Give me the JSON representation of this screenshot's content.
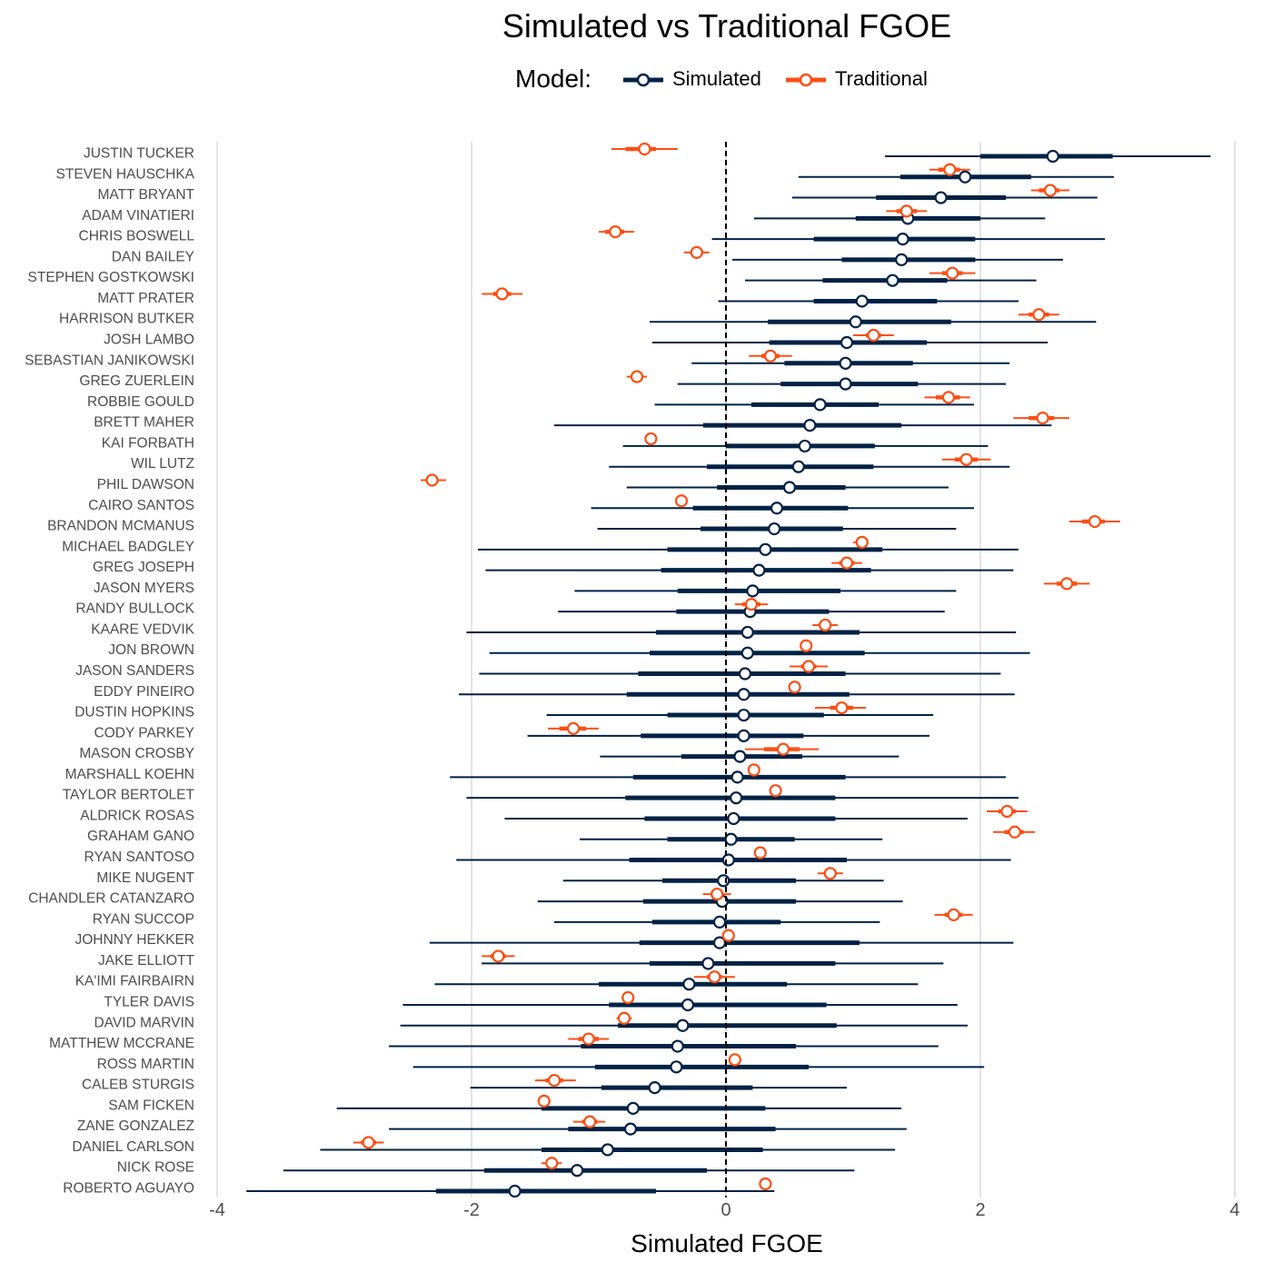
{
  "chart_data": {
    "type": "scatter",
    "title": "Simulated vs Traditional FGOE",
    "xlabel": "Simulated FGOE",
    "ylabel": "",
    "xlim": [
      -4,
      4
    ],
    "x_ticks": [
      -4,
      -2,
      0,
      2,
      4
    ],
    "x_tick_labels": [
      "-4",
      "-2",
      "0",
      "2",
      "4"
    ],
    "reference_line_x": 0,
    "grid": "vertical",
    "legend": {
      "title": "Model:",
      "position": "top"
    },
    "colors": {
      "Simulated": "#002244",
      "Traditional": "#FB4F14"
    },
    "categories": [
      "JUSTIN TUCKER",
      "STEVEN HAUSCHKA",
      "MATT BRYANT",
      "ADAM VINATIERI",
      "CHRIS BOSWELL",
      "DAN BAILEY",
      "STEPHEN GOSTKOWSKI",
      "MATT PRATER",
      "HARRISON BUTKER",
      "JOSH LAMBO",
      "SEBASTIAN JANIKOWSKI",
      "GREG ZUERLEIN",
      "ROBBIE GOULD",
      "BRETT MAHER",
      "KAI FORBATH",
      "WIL LUTZ",
      "PHIL DAWSON",
      "CAIRO SANTOS",
      "BRANDON MCMANUS",
      "MICHAEL BADGLEY",
      "GREG JOSEPH",
      "JASON MYERS",
      "RANDY BULLOCK",
      "KAARE VEDVIK",
      "JON BROWN",
      "JASON SANDERS",
      "EDDY PINEIRO",
      "DUSTIN HOPKINS",
      "CODY PARKEY",
      "MASON CROSBY",
      "MARSHALL KOEHN",
      "TAYLOR BERTOLET",
      "ALDRICK ROSAS",
      "GRAHAM GANO",
      "RYAN SANTOSO",
      "MIKE NUGENT",
      "CHANDLER CATANZARO",
      "RYAN SUCCOP",
      "JOHNNY HEKKER",
      "JAKE ELLIOTT",
      "KA'IMI FAIRBAIRN",
      "TYLER DAVIS",
      "DAVID MARVIN",
      "MATTHEW MCCRANE",
      "ROSS MARTIN",
      "CALEB STURGIS",
      "SAM FICKEN",
      "ZANE GONZALEZ",
      "DANIEL CARLSON",
      "NICK ROSE",
      "ROBERTO AGUAYO"
    ],
    "series": [
      {
        "name": "Simulated",
        "values": [
          2.57,
          1.88,
          1.69,
          1.43,
          1.39,
          1.38,
          1.31,
          1.07,
          1.02,
          0.95,
          0.94,
          0.94,
          0.74,
          0.66,
          0.62,
          0.57,
          0.5,
          0.4,
          0.38,
          0.31,
          0.26,
          0.21,
          0.19,
          0.17,
          0.17,
          0.15,
          0.14,
          0.14,
          0.14,
          0.11,
          0.09,
          0.08,
          0.06,
          0.04,
          0.02,
          -0.02,
          -0.03,
          -0.05,
          -0.05,
          -0.14,
          -0.29,
          -0.3,
          -0.34,
          -0.38,
          -0.39,
          -0.56,
          -0.73,
          -0.75,
          -0.93,
          -1.17,
          -1.66
        ],
        "inner_low": [
          2.0,
          1.37,
          1.18,
          1.02,
          0.69,
          0.91,
          0.76,
          0.69,
          0.33,
          0.34,
          0.46,
          0.43,
          0.2,
          -0.18,
          0.0,
          -0.15,
          -0.07,
          -0.26,
          -0.2,
          -0.46,
          -0.51,
          -0.38,
          -0.39,
          -0.55,
          -0.6,
          -0.69,
          -0.78,
          -0.46,
          -0.67,
          -0.35,
          -0.73,
          -0.79,
          -0.64,
          -0.46,
          -0.76,
          -0.5,
          -0.65,
          -0.58,
          -0.68,
          -0.6,
          -1.0,
          -0.92,
          -0.85,
          -1.14,
          -1.03,
          -0.98,
          -1.45,
          -1.24,
          -1.45,
          -1.9,
          -2.28
        ],
        "inner_high": [
          3.04,
          2.4,
          2.2,
          2.0,
          1.96,
          1.96,
          1.74,
          1.66,
          1.77,
          1.58,
          1.47,
          1.51,
          1.2,
          1.38,
          1.17,
          1.16,
          0.94,
          0.96,
          0.92,
          1.23,
          1.14,
          0.9,
          0.81,
          1.05,
          1.09,
          0.94,
          0.97,
          0.77,
          0.61,
          0.6,
          0.94,
          0.86,
          0.86,
          0.54,
          0.95,
          0.55,
          0.55,
          0.43,
          1.05,
          0.86,
          0.48,
          0.79,
          0.87,
          0.55,
          0.65,
          0.21,
          0.31,
          0.39,
          0.29,
          -0.15,
          -0.55
        ],
        "outer_low": [
          1.25,
          0.57,
          0.52,
          0.22,
          -0.11,
          0.05,
          0.15,
          -0.06,
          -0.6,
          -0.58,
          -0.27,
          -0.38,
          -0.56,
          -1.35,
          -0.81,
          -0.92,
          -0.78,
          -1.06,
          -1.01,
          -1.95,
          -1.89,
          -1.19,
          -1.32,
          -2.04,
          -1.86,
          -1.94,
          -2.1,
          -1.41,
          -1.56,
          -0.99,
          -2.17,
          -2.04,
          -1.74,
          -1.15,
          -2.12,
          -1.28,
          -1.48,
          -1.35,
          -2.33,
          -1.92,
          -2.29,
          -2.54,
          -2.56,
          -2.65,
          -2.46,
          -2.01,
          -3.06,
          -2.65,
          -3.19,
          -3.48,
          -3.77
        ],
        "outer_high": [
          3.81,
          3.05,
          2.92,
          2.51,
          2.98,
          2.65,
          2.44,
          2.3,
          2.91,
          2.53,
          2.23,
          2.2,
          1.95,
          2.56,
          2.06,
          2.23,
          1.75,
          1.95,
          1.81,
          2.3,
          2.26,
          1.81,
          1.72,
          2.28,
          2.39,
          2.16,
          2.27,
          1.63,
          1.6,
          1.36,
          2.2,
          2.3,
          1.9,
          1.23,
          2.24,
          1.24,
          1.39,
          1.21,
          2.26,
          1.71,
          1.51,
          1.82,
          1.9,
          1.67,
          2.03,
          0.95,
          1.38,
          1.42,
          1.33,
          1.01,
          0.38
        ]
      },
      {
        "name": "Traditional",
        "values": [
          -0.64,
          1.76,
          2.55,
          1.42,
          -0.87,
          -0.23,
          1.78,
          -1.76,
          2.46,
          1.16,
          0.35,
          -0.7,
          1.75,
          2.49,
          -0.59,
          1.89,
          -2.31,
          -0.35,
          2.9,
          1.07,
          0.95,
          2.68,
          0.2,
          0.78,
          0.63,
          0.65,
          0.54,
          0.91,
          -1.2,
          0.45,
          0.22,
          0.39,
          2.21,
          2.27,
          0.27,
          0.82,
          -0.07,
          1.79,
          0.02,
          -1.79,
          -0.09,
          -0.77,
          -0.8,
          -1.08,
          0.07,
          -1.35,
          -1.43,
          -1.07,
          -2.81,
          -1.37,
          0.31
        ],
        "inner_low": [
          -0.79,
          1.67,
          2.46,
          1.34,
          -0.95,
          -0.28,
          1.7,
          -1.83,
          2.38,
          1.1,
          0.28,
          -0.74,
          1.65,
          2.38,
          -0.61,
          1.8,
          -2.36,
          -0.37,
          2.8,
          1.04,
          0.89,
          2.6,
          0.13,
          0.73,
          0.62,
          0.59,
          0.53,
          0.82,
          -1.31,
          0.3,
          0.2,
          0.37,
          2.14,
          2.19,
          0.26,
          0.77,
          -0.12,
          1.72,
          0.0,
          -1.85,
          -0.15,
          -0.79,
          -0.83,
          -1.16,
          0.05,
          -1.42,
          -1.45,
          -1.13,
          -2.87,
          -1.41,
          0.29
        ],
        "inner_high": [
          -0.55,
          1.84,
          2.62,
          1.5,
          -0.8,
          -0.18,
          1.86,
          -1.69,
          2.54,
          1.22,
          0.42,
          -0.66,
          1.84,
          2.58,
          -0.57,
          1.98,
          -2.26,
          -0.33,
          2.98,
          1.1,
          1.01,
          2.76,
          0.27,
          0.83,
          0.64,
          0.71,
          0.55,
          1.0,
          -1.1,
          0.58,
          0.24,
          0.41,
          2.28,
          2.34,
          0.28,
          0.87,
          -0.02,
          1.86,
          0.04,
          -1.73,
          -0.03,
          -0.75,
          -0.77,
          -1.0,
          0.09,
          -1.28,
          -1.41,
          -1.01,
          -2.75,
          -1.33,
          0.33
        ],
        "outer_low": [
          -0.9,
          1.6,
          2.4,
          1.26,
          -1.0,
          -0.33,
          1.6,
          -1.92,
          2.3,
          1.0,
          0.18,
          -0.78,
          1.56,
          2.26,
          -0.63,
          1.7,
          -2.4,
          -0.39,
          2.7,
          1.0,
          0.83,
          2.5,
          0.07,
          0.68,
          0.6,
          0.5,
          0.51,
          0.7,
          -1.4,
          0.15,
          0.18,
          0.35,
          2.05,
          2.1,
          0.24,
          0.72,
          -0.18,
          1.64,
          -0.02,
          -1.92,
          -0.25,
          -0.81,
          -0.86,
          -1.24,
          0.03,
          -1.5,
          -1.47,
          -1.2,
          -2.93,
          -1.45,
          0.27
        ],
        "outer_high": [
          -0.38,
          1.92,
          2.7,
          1.58,
          -0.72,
          -0.13,
          1.96,
          -1.6,
          2.62,
          1.32,
          0.52,
          -0.62,
          1.92,
          2.7,
          -0.55,
          2.08,
          -2.2,
          -0.31,
          3.1,
          1.12,
          1.07,
          2.86,
          0.33,
          0.88,
          0.66,
          0.8,
          0.57,
          1.1,
          -1.0,
          0.73,
          0.26,
          0.43,
          2.37,
          2.43,
          0.3,
          0.92,
          0.04,
          1.94,
          0.06,
          -1.66,
          0.07,
          -0.73,
          -0.74,
          -0.92,
          0.11,
          -1.18,
          -1.39,
          -0.95,
          -2.69,
          -1.29,
          0.35
        ]
      }
    ]
  }
}
